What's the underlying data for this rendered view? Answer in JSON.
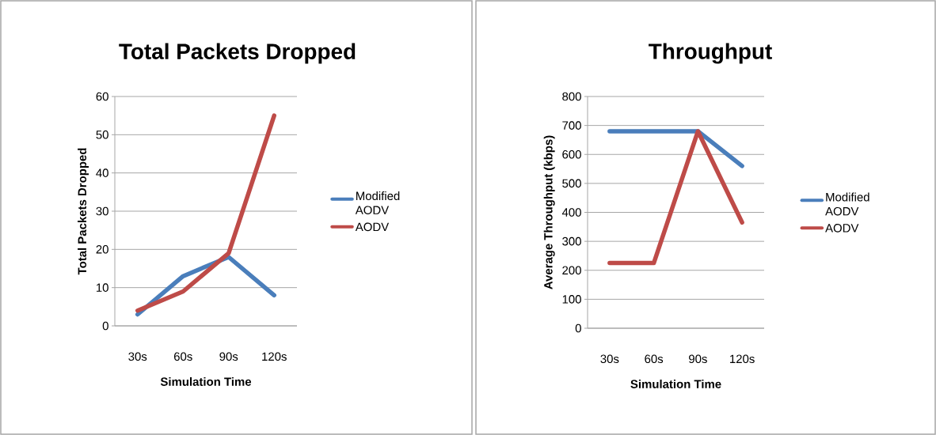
{
  "chart_data": [
    {
      "type": "line",
      "title": "Total Packets Dropped",
      "xlabel": "Simulation Time",
      "ylabel": "Total Packets Dropped",
      "categories": [
        "30s",
        "60s",
        "90s",
        "120s"
      ],
      "series": [
        {
          "name": "Modified AODV",
          "color": "#4a7ebb",
          "values": [
            3,
            13,
            18,
            8
          ]
        },
        {
          "name": "AODV",
          "color": "#be4b48",
          "values": [
            4,
            9,
            19,
            55
          ]
        }
      ],
      "ylim": [
        0,
        60
      ],
      "yticks": [
        0,
        10,
        20,
        30,
        40,
        50,
        60
      ],
      "grid": "y",
      "legend": "right"
    },
    {
      "type": "line",
      "title": "Throughput",
      "xlabel": "Simulation Time",
      "ylabel": "Average Throughput (kbps)",
      "categories": [
        "30s",
        "60s",
        "90s",
        "120s"
      ],
      "series": [
        {
          "name": "Modified AODV",
          "color": "#4a7ebb",
          "values": [
            680,
            680,
            680,
            560
          ]
        },
        {
          "name": "AODV",
          "color": "#be4b48",
          "values": [
            225,
            225,
            680,
            365
          ]
        }
      ],
      "ylim": [
        0,
        800
      ],
      "yticks": [
        0,
        100,
        200,
        300,
        400,
        500,
        600,
        700,
        800
      ],
      "grid": "y",
      "legend": "right"
    }
  ]
}
